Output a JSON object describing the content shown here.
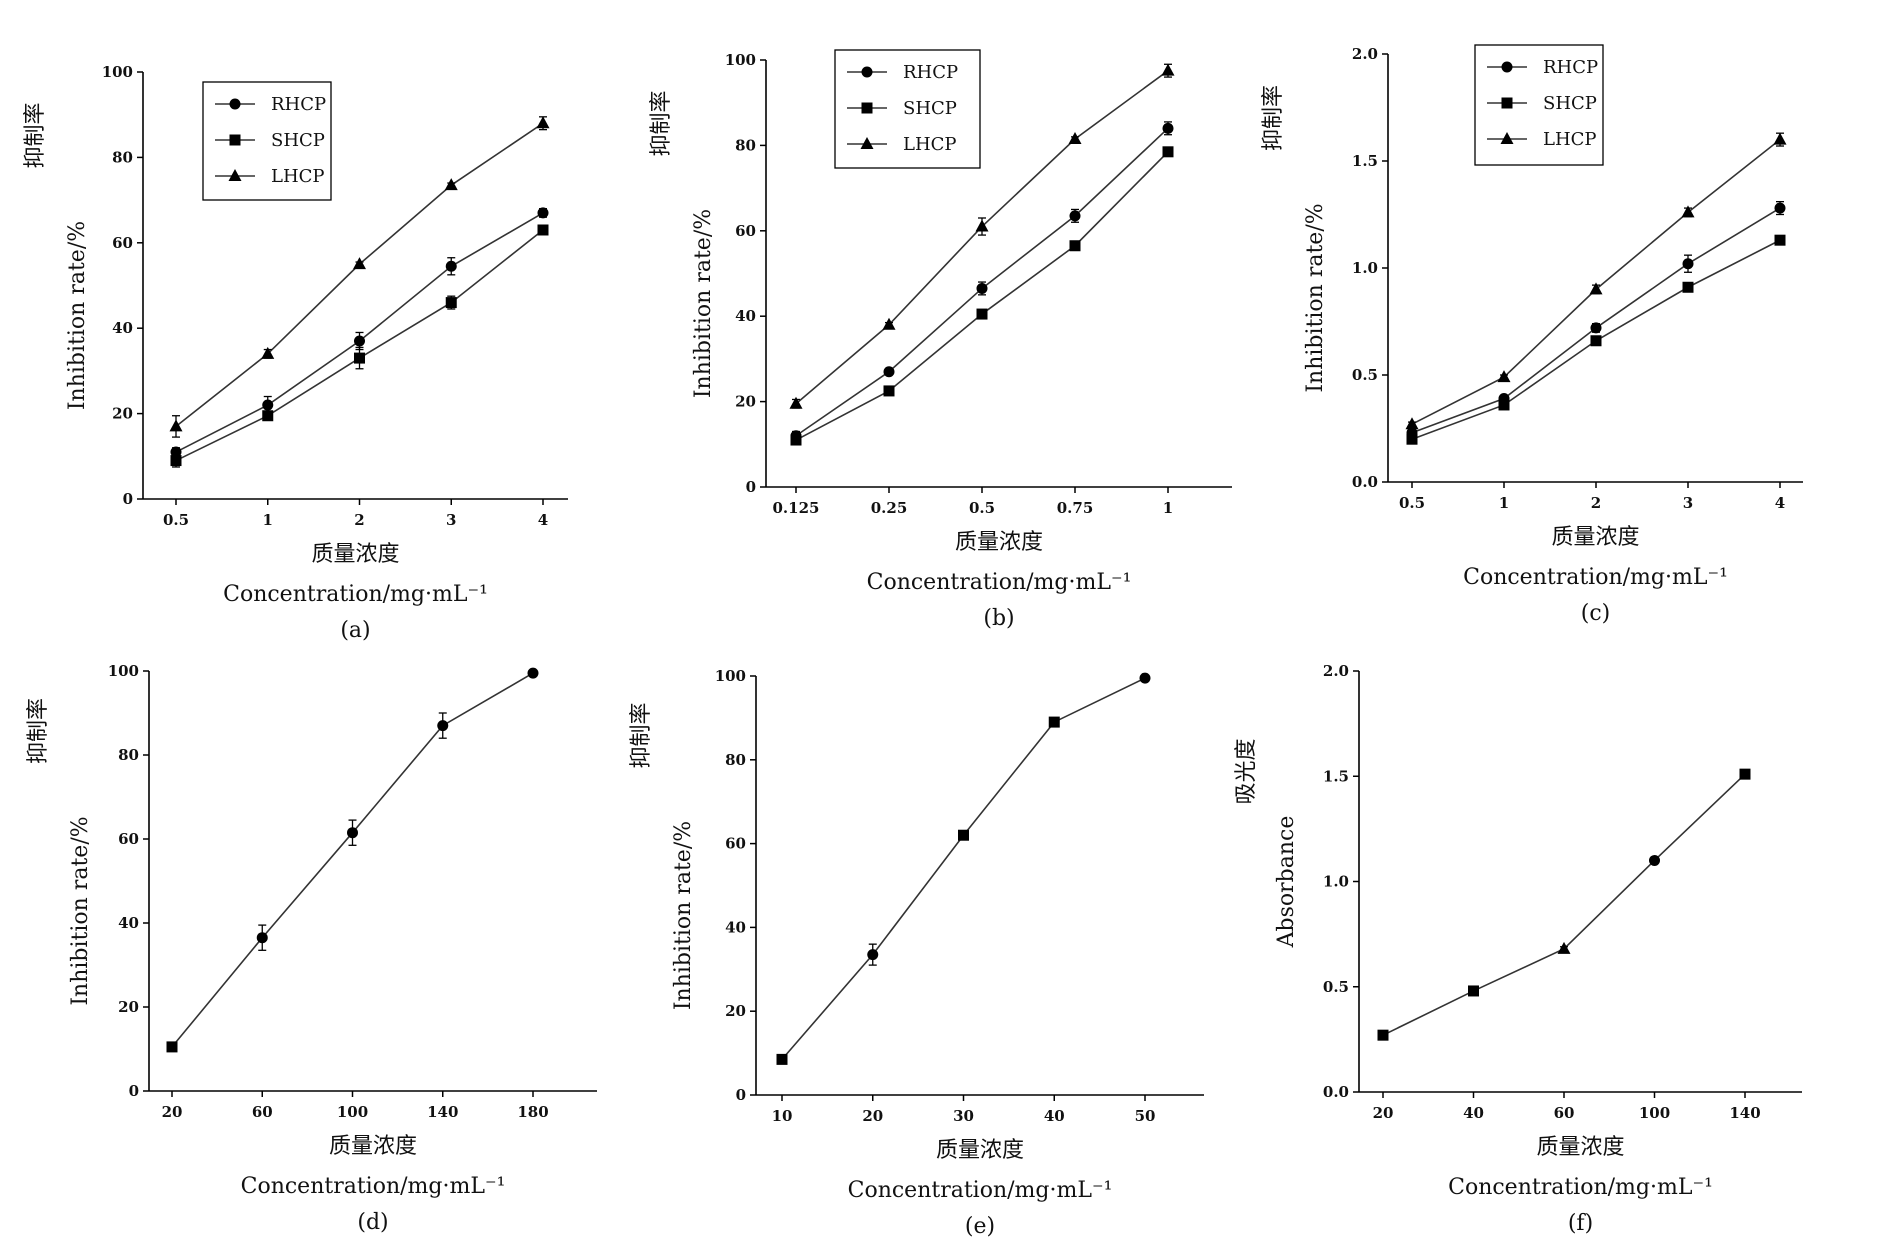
{
  "chart_data": [
    {
      "id": "a",
      "type": "line",
      "panel_label": "(a)",
      "xlabel_cn": "质量浓度",
      "xlabel": "Concentration/mg·mL⁻¹",
      "ylabel_cn": "抑制率",
      "ylabel": "Inhibition rate/%",
      "categories": [
        "0.5",
        "1",
        "2",
        "3",
        "4"
      ],
      "ylim": [
        0,
        100
      ],
      "yticks": [
        "0",
        "20",
        "40",
        "60",
        "80",
        "100"
      ],
      "legend_position": "top-left",
      "series": [
        {
          "name": "RHCP",
          "marker": "circle",
          "values": [
            11,
            22,
            37,
            54.5,
            67
          ],
          "errors": [
            1,
            2,
            2,
            2,
            1
          ]
        },
        {
          "name": "SHCP",
          "marker": "square",
          "values": [
            9,
            19.5,
            33,
            46,
            63
          ],
          "errors": [
            1.5,
            1,
            2.5,
            1.5,
            1
          ]
        },
        {
          "name": "LHCP",
          "marker": "triangle",
          "values": [
            17,
            34,
            55,
            73.5,
            88
          ],
          "errors": [
            2.5,
            1,
            0.5,
            0.5,
            1.5
          ]
        }
      ]
    },
    {
      "id": "b",
      "type": "line",
      "panel_label": "(b)",
      "xlabel_cn": "质量浓度",
      "xlabel": "Concentration/mg·mL⁻¹",
      "ylabel_cn": "抑制率",
      "ylabel": "Inhibition rate/%",
      "categories": [
        "0.125",
        "0.25",
        "0.5",
        "0.75",
        "1"
      ],
      "ylim": [
        0,
        100
      ],
      "yticks": [
        "0",
        "20",
        "40",
        "60",
        "80",
        "100"
      ],
      "legend_position": "top-left",
      "series": [
        {
          "name": "RHCP",
          "marker": "circle",
          "values": [
            12,
            27,
            46.5,
            63.5,
            84
          ],
          "errors": [
            1,
            0.5,
            1.5,
            1.5,
            1.5
          ]
        },
        {
          "name": "SHCP",
          "marker": "square",
          "values": [
            11,
            22.5,
            40.5,
            56.5,
            78.5
          ],
          "errors": [
            0.5,
            0.5,
            0.5,
            1,
            1
          ]
        },
        {
          "name": "LHCP",
          "marker": "triangle",
          "values": [
            19.5,
            38,
            61,
            81.5,
            97.5
          ],
          "errors": [
            1,
            0.5,
            2,
            0.5,
            1.5
          ]
        }
      ]
    },
    {
      "id": "c",
      "type": "line",
      "panel_label": "(c)",
      "xlabel_cn": "质量浓度",
      "xlabel": "Concentration/mg·mL⁻¹",
      "ylabel_cn": "抑制率",
      "ylabel": "Inhibition rate/%",
      "categories": [
        "0.5",
        "1",
        "2",
        "3",
        "4"
      ],
      "ylim": [
        0,
        2.0
      ],
      "yticks": [
        "0.0",
        "0.5",
        "1.0",
        "1.5",
        "2.0"
      ],
      "legend_position": "top-left",
      "series": [
        {
          "name": "RHCP",
          "marker": "circle",
          "values": [
            0.23,
            0.39,
            0.72,
            1.02,
            1.28
          ],
          "errors": [
            0.01,
            0.01,
            0.02,
            0.04,
            0.03
          ]
        },
        {
          "name": "SHCP",
          "marker": "square",
          "values": [
            0.2,
            0.36,
            0.66,
            0.91,
            1.13
          ],
          "errors": [
            0.01,
            0.01,
            0.01,
            0.01,
            0.01
          ]
        },
        {
          "name": "LHCP",
          "marker": "triangle",
          "values": [
            0.27,
            0.49,
            0.9,
            1.26,
            1.6
          ],
          "errors": [
            0.01,
            0.01,
            0.02,
            0.02,
            0.03
          ]
        }
      ]
    },
    {
      "id": "d",
      "type": "line",
      "panel_label": "(d)",
      "xlabel_cn": "质量浓度",
      "xlabel": "Concentration/mg·mL⁻¹",
      "ylabel_cn": "抑制率",
      "ylabel": "Inhibition rate/%",
      "categories": [
        "20",
        "60",
        "100",
        "140",
        "180"
      ],
      "ylim": [
        0,
        100
      ],
      "yticks": [
        "0",
        "20",
        "40",
        "60",
        "80",
        "100"
      ],
      "series": [
        {
          "marker": "mixed",
          "markers": [
            "square",
            "circle",
            "circle",
            "circle",
            "circle"
          ],
          "values": [
            10.5,
            36.5,
            61.5,
            87,
            99.5
          ],
          "errors": [
            0.5,
            3,
            3,
            3,
            0.3
          ]
        }
      ]
    },
    {
      "id": "e",
      "type": "line",
      "panel_label": "(e)",
      "xlabel_cn": "质量浓度",
      "xlabel": "Concentration/mg·mL⁻¹",
      "ylabel_cn": "抑制率",
      "ylabel": "Inhibition rate/%",
      "categories": [
        "10",
        "20",
        "30",
        "40",
        "50"
      ],
      "ylim": [
        0,
        100
      ],
      "yticks": [
        "0",
        "20",
        "40",
        "60",
        "80",
        "100"
      ],
      "series": [
        {
          "marker": "mixed",
          "markers": [
            "square",
            "circle",
            "square",
            "square",
            "circle"
          ],
          "values": [
            8.5,
            33.5,
            62,
            89,
            99.5
          ],
          "errors": [
            0.5,
            2.5,
            1,
            0.5,
            0.3
          ]
        }
      ]
    },
    {
      "id": "f",
      "type": "line",
      "panel_label": "(f)",
      "xlabel_cn": "质量浓度",
      "xlabel": "Concentration/mg·mL⁻¹",
      "ylabel_cn": "吸光度",
      "ylabel": "Absorbance",
      "categories": [
        "20",
        "40",
        "60",
        "100",
        "140"
      ],
      "ylim": [
        0,
        2.0
      ],
      "yticks": [
        "0.0",
        "0.5",
        "1.0",
        "1.5",
        "2.0"
      ],
      "series": [
        {
          "marker": "mixed",
          "markers": [
            "square",
            "square",
            "triangle",
            "circle",
            "square"
          ],
          "values": [
            0.27,
            0.48,
            0.68,
            1.1,
            1.51
          ],
          "errors": [
            0.01,
            0.01,
            0.01,
            0.01,
            0.01
          ]
        }
      ]
    }
  ]
}
